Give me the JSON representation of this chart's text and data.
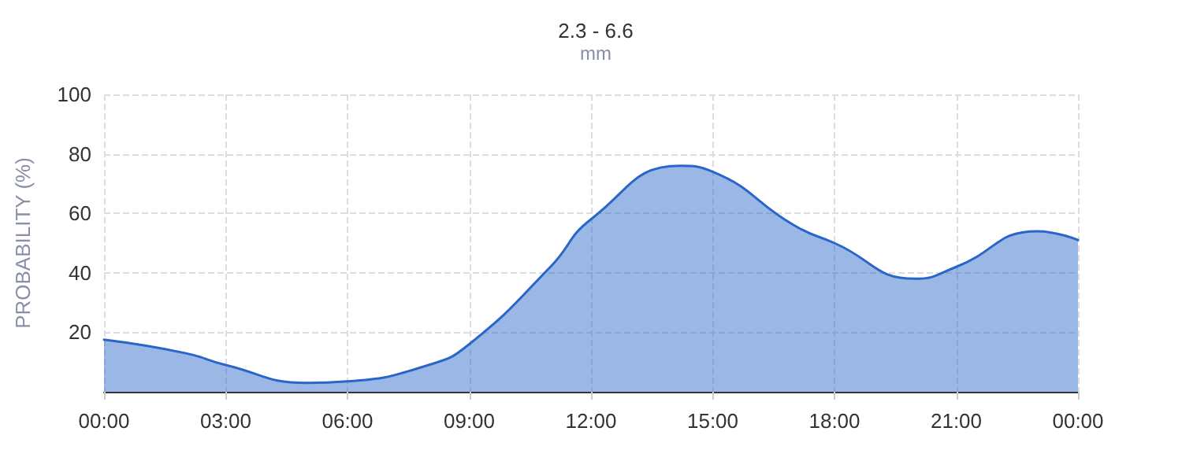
{
  "chart_data": {
    "type": "area",
    "title": "2.3 - 6.6",
    "subtitle": "mm",
    "ylabel": "PROBABILITY (%)",
    "x": [
      0,
      2,
      3,
      5,
      6,
      8,
      9,
      11,
      12,
      14.2,
      15,
      17,
      18,
      20,
      21,
      23,
      24
    ],
    "series": [
      {
        "color": "#2a66c9",
        "values": [
          17.5,
          13,
          9,
          3,
          3.5,
          9,
          16,
          42,
          58,
          76,
          74,
          56,
          50,
          38,
          42,
          54,
          51
        ]
      }
    ],
    "xlim": [
      0,
      24
    ],
    "xticks": [
      {
        "value": 0,
        "label": "00:00"
      },
      {
        "value": 3,
        "label": "03:00"
      },
      {
        "value": 6,
        "label": "06:00"
      },
      {
        "value": 9,
        "label": "09:00"
      },
      {
        "value": 12,
        "label": "12:00"
      },
      {
        "value": 15,
        "label": "15:00"
      },
      {
        "value": 18,
        "label": "18:00"
      },
      {
        "value": 21,
        "label": "21:00"
      },
      {
        "value": 24,
        "label": "00:00"
      }
    ],
    "ylim": [
      0,
      100
    ],
    "yticks": [
      20,
      40,
      60,
      80,
      100
    ],
    "grid": true,
    "marker": "none",
    "line_style": "solid"
  }
}
